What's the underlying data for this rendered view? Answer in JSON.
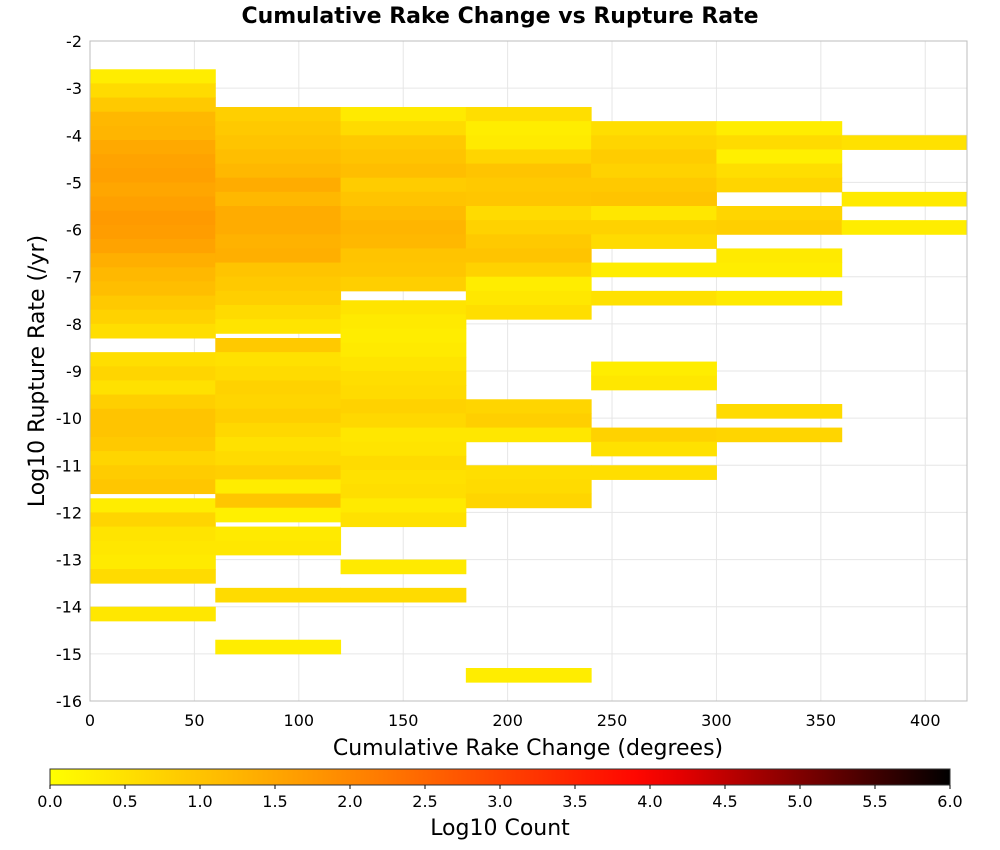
{
  "chart_data": {
    "type": "heatmap",
    "title": "Cumulative Rake Change vs Rupture Rate",
    "xlabel": "Cumulative Rake Change (degrees)",
    "ylabel": "Log10 Rupture Rate (/yr)",
    "xlim": [
      0,
      420
    ],
    "ylim": [
      -16,
      -2
    ],
    "x_ticks": [
      "0",
      "50",
      "100",
      "150",
      "200",
      "250",
      "300",
      "350",
      "400"
    ],
    "y_ticks": [
      "-2",
      "-3",
      "-4",
      "-5",
      "-6",
      "-7",
      "-8",
      "-9",
      "-10",
      "-11",
      "-12",
      "-13",
      "-14",
      "-15",
      "-16"
    ],
    "x_tick_values": [
      0,
      50,
      100,
      150,
      200,
      250,
      300,
      350,
      400
    ],
    "y_tick_values": [
      -2,
      -3,
      -4,
      -5,
      -6,
      -7,
      -8,
      -9,
      -10,
      -11,
      -12,
      -13,
      -14,
      -15,
      -16
    ],
    "x_bin_width": 60,
    "y_bin_height": 0.3,
    "grid": true,
    "colorbar": {
      "label": "Log10 Count",
      "range": [
        0.0,
        6.0
      ],
      "ticks": [
        "0.0",
        "0.5",
        "1.0",
        "1.5",
        "2.0",
        "2.5",
        "3.0",
        "3.5",
        "4.0",
        "4.5",
        "5.0",
        "5.5",
        "6.0"
      ],
      "tick_values": [
        0.0,
        0.5,
        1.0,
        1.5,
        2.0,
        2.5,
        3.0,
        3.5,
        4.0,
        4.5,
        5.0,
        5.5,
        6.0
      ],
      "colors": [
        "#ffff00",
        "#ff8800",
        "#ff0000",
        "#000000"
      ]
    },
    "columns": [
      {
        "x": 0,
        "cells": [
          [
            -2.75,
            0.3
          ],
          [
            -3.05,
            0.6
          ],
          [
            -3.35,
            0.9
          ],
          [
            -3.65,
            1.2
          ],
          [
            -3.95,
            1.25
          ],
          [
            -4.25,
            1.45
          ],
          [
            -4.55,
            1.55
          ],
          [
            -4.85,
            1.6
          ],
          [
            -5.15,
            1.5
          ],
          [
            -5.45,
            1.6
          ],
          [
            -5.75,
            1.7
          ],
          [
            -6.05,
            1.65
          ],
          [
            -6.35,
            1.55
          ],
          [
            -6.65,
            1.35
          ],
          [
            -6.95,
            1.2
          ],
          [
            -7.25,
            1.1
          ],
          [
            -7.55,
            0.9
          ],
          [
            -7.85,
            0.75
          ],
          [
            -8.15,
            0.55
          ],
          [
            -8.75,
            0.55
          ],
          [
            -9.05,
            0.7
          ],
          [
            -9.35,
            0.5
          ],
          [
            -9.65,
            0.8
          ],
          [
            -9.95,
            1.0
          ],
          [
            -10.25,
            1.0
          ],
          [
            -10.55,
            0.9
          ],
          [
            -10.85,
            0.7
          ],
          [
            -11.15,
            0.85
          ],
          [
            -11.45,
            0.95
          ],
          [
            -11.85,
            0.3
          ],
          [
            -12.15,
            0.7
          ],
          [
            -12.45,
            0.45
          ],
          [
            -12.75,
            0.4
          ],
          [
            -13.05,
            0.35
          ],
          [
            -13.35,
            0.6
          ],
          [
            -14.15,
            0.4
          ]
        ]
      },
      {
        "x": 60,
        "cells": [
          [
            -3.55,
            0.8
          ],
          [
            -3.85,
            0.9
          ],
          [
            -4.15,
            1.0
          ],
          [
            -4.45,
            1.1
          ],
          [
            -4.75,
            1.2
          ],
          [
            -5.05,
            1.4
          ],
          [
            -5.35,
            1.2
          ],
          [
            -5.65,
            1.4
          ],
          [
            -5.95,
            1.4
          ],
          [
            -6.25,
            1.3
          ],
          [
            -6.55,
            1.35
          ],
          [
            -6.85,
            1.0
          ],
          [
            -7.15,
            0.9
          ],
          [
            -7.45,
            0.8
          ],
          [
            -7.75,
            0.6
          ],
          [
            -8.05,
            0.45
          ],
          [
            -8.45,
            0.9
          ],
          [
            -8.75,
            0.5
          ],
          [
            -9.05,
            0.6
          ],
          [
            -9.35,
            0.75
          ],
          [
            -9.65,
            0.7
          ],
          [
            -9.95,
            0.8
          ],
          [
            -10.25,
            0.65
          ],
          [
            -10.55,
            0.5
          ],
          [
            -10.85,
            0.6
          ],
          [
            -11.15,
            0.8
          ],
          [
            -11.45,
            0.3
          ],
          [
            -11.75,
            0.95
          ],
          [
            -12.05,
            0.25
          ],
          [
            -12.45,
            0.35
          ],
          [
            -12.75,
            0.4
          ],
          [
            -13.75,
            0.6
          ],
          [
            -14.85,
            0.3
          ]
        ]
      },
      {
        "x": 120,
        "cells": [
          [
            -3.55,
            0.35
          ],
          [
            -3.85,
            0.6
          ],
          [
            -4.15,
            0.9
          ],
          [
            -4.45,
            1.0
          ],
          [
            -4.75,
            1.1
          ],
          [
            -5.05,
            0.85
          ],
          [
            -5.35,
            1.0
          ],
          [
            -5.65,
            1.15
          ],
          [
            -5.95,
            1.25
          ],
          [
            -6.25,
            1.2
          ],
          [
            -6.55,
            1.0
          ],
          [
            -6.85,
            0.95
          ],
          [
            -7.15,
            0.8
          ],
          [
            -7.65,
            0.45
          ],
          [
            -7.95,
            0.35
          ],
          [
            -8.25,
            0.3
          ],
          [
            -8.55,
            0.35
          ],
          [
            -8.85,
            0.45
          ],
          [
            -9.15,
            0.55
          ],
          [
            -9.45,
            0.6
          ],
          [
            -9.75,
            0.75
          ],
          [
            -10.05,
            0.65
          ],
          [
            -10.35,
            0.4
          ],
          [
            -10.65,
            0.45
          ],
          [
            -10.95,
            0.6
          ],
          [
            -11.25,
            0.5
          ],
          [
            -11.55,
            0.55
          ],
          [
            -11.85,
            0.35
          ],
          [
            -12.15,
            0.5
          ],
          [
            -13.15,
            0.35
          ],
          [
            -13.75,
            0.6
          ]
        ]
      },
      {
        "x": 180,
        "cells": [
          [
            -3.55,
            0.55
          ],
          [
            -3.85,
            0.3
          ],
          [
            -4.15,
            0.35
          ],
          [
            -4.45,
            0.7
          ],
          [
            -4.75,
            1.0
          ],
          [
            -5.05,
            0.9
          ],
          [
            -5.35,
            0.95
          ],
          [
            -5.65,
            0.6
          ],
          [
            -5.95,
            0.75
          ],
          [
            -6.25,
            0.9
          ],
          [
            -6.55,
            1.0
          ],
          [
            -6.85,
            0.75
          ],
          [
            -7.15,
            0.3
          ],
          [
            -7.45,
            0.4
          ],
          [
            -7.75,
            0.55
          ],
          [
            -9.75,
            0.7
          ],
          [
            -10.05,
            0.8
          ],
          [
            -10.35,
            0.4
          ],
          [
            -11.15,
            0.55
          ],
          [
            -11.45,
            0.6
          ],
          [
            -11.75,
            0.7
          ],
          [
            -15.45,
            0.3
          ]
        ]
      },
      {
        "x": 240,
        "cells": [
          [
            -3.85,
            0.55
          ],
          [
            -4.15,
            0.7
          ],
          [
            -4.45,
            0.85
          ],
          [
            -4.75,
            0.75
          ],
          [
            -5.05,
            0.9
          ],
          [
            -5.35,
            1.0
          ],
          [
            -5.65,
            0.4
          ],
          [
            -5.95,
            0.75
          ],
          [
            -6.25,
            0.6
          ],
          [
            -6.85,
            0.3
          ],
          [
            -7.45,
            0.5
          ],
          [
            -8.95,
            0.3
          ],
          [
            -9.25,
            0.4
          ],
          [
            -10.35,
            0.75
          ],
          [
            -10.65,
            0.5
          ],
          [
            -11.15,
            0.55
          ]
        ]
      },
      {
        "x": 300,
        "cells": [
          [
            -3.85,
            0.3
          ],
          [
            -4.15,
            0.6
          ],
          [
            -4.45,
            0.25
          ],
          [
            -4.75,
            0.55
          ],
          [
            -5.05,
            0.7
          ],
          [
            -5.65,
            0.7
          ],
          [
            -5.95,
            0.8
          ],
          [
            -6.55,
            0.35
          ],
          [
            -6.85,
            0.3
          ],
          [
            -7.45,
            0.35
          ],
          [
            -9.85,
            0.6
          ],
          [
            -10.35,
            0.7
          ]
        ]
      },
      {
        "x": 360,
        "cells": [
          [
            -4.15,
            0.5
          ],
          [
            -5.35,
            0.35
          ],
          [
            -5.95,
            0.3
          ]
        ]
      }
    ]
  }
}
